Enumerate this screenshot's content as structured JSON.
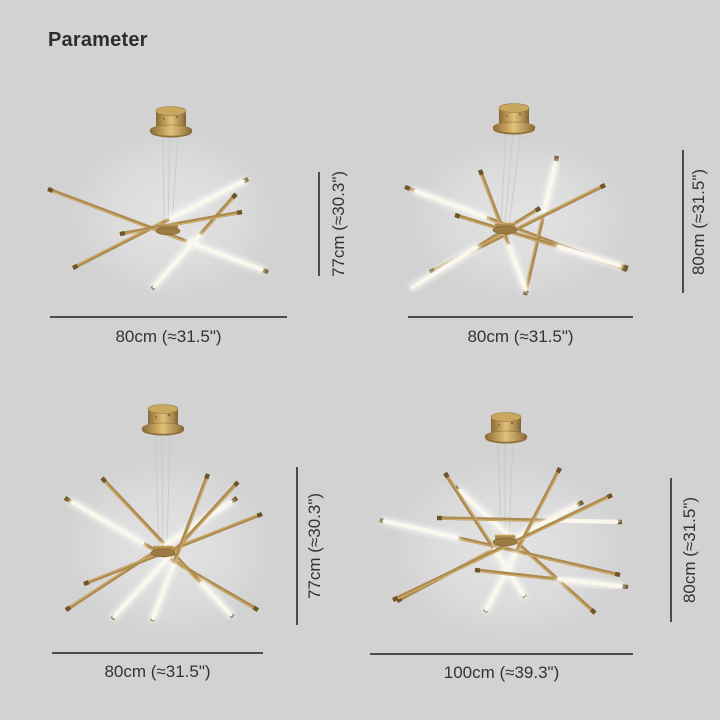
{
  "page": {
    "title": "Parameter",
    "background_color": "#d2d2d2"
  },
  "colors": {
    "brass": "#ad8a50",
    "brass_highlight": "#d8ba78",
    "brass_dark": "#6e5528",
    "led_tube": "#faf7ed",
    "wire": "#c8c8c6",
    "dimension_line": "#4b4b4b",
    "dimension_text": "#333333",
    "title_text": "#2d2d2d"
  },
  "variants": [
    {
      "name": "top-left",
      "width_label": "80cm (≈31.5\")",
      "height_label": "77cm (≈30.3\")"
    },
    {
      "name": "top-right",
      "width_label": "80cm (≈31.5\")",
      "height_label": "80cm (≈31.5\")"
    },
    {
      "name": "bottom-left",
      "width_label": "80cm (≈31.5\")",
      "height_label": "77cm (≈30.3\")"
    },
    {
      "name": "bottom-right",
      "width_label": "100cm (≈39.3\")",
      "height_label": "80cm (≈31.5\")"
    }
  ]
}
